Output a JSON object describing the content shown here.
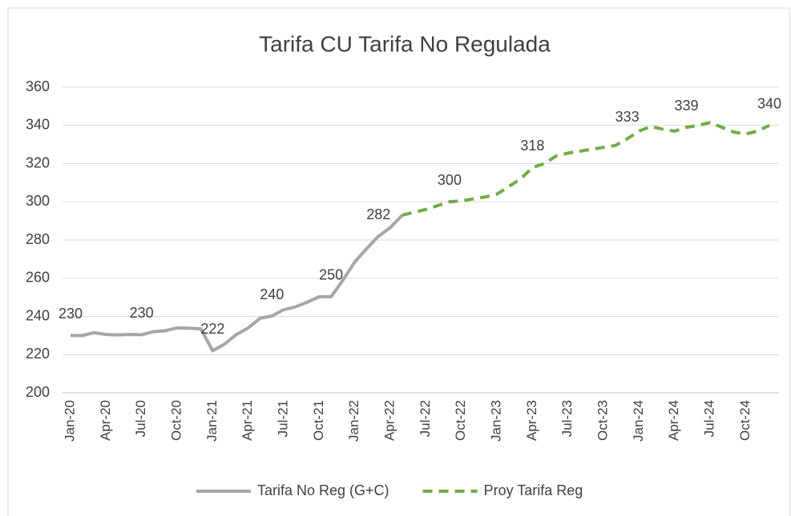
{
  "chart_data": {
    "type": "line",
    "title": "Tarifa CU Tarifa No Regulada",
    "categories": [
      "Jan-20",
      null,
      null,
      "Apr-20",
      null,
      null,
      "Jul-20",
      null,
      null,
      "Oct-20",
      null,
      null,
      "Jan-21",
      null,
      null,
      "Apr-21",
      null,
      null,
      "Jul-21",
      null,
      null,
      "Oct-21",
      null,
      null,
      "Jan-22",
      null,
      null,
      "Apr-22",
      null,
      null,
      "Jul-22",
      null,
      null,
      "Oct-22",
      null,
      null,
      "Jan-23",
      null,
      null,
      "Apr-23",
      null,
      null,
      "Jul-23",
      null,
      null,
      "Oct-23",
      null,
      null,
      "Jan-24",
      null,
      null,
      "Apr-24",
      null,
      null,
      "Jul-24",
      null,
      null,
      "Oct-24",
      null,
      null
    ],
    "series": [
      {
        "name": "Tarifa No Reg (G+C)",
        "color": "#a6a6a6",
        "dash": false,
        "values": [
          230,
          230,
          231.5,
          230.5,
          230.3,
          230.5,
          230.4,
          232,
          232.5,
          234,
          233.8,
          233.5,
          222,
          225.5,
          230.5,
          234,
          239,
          240.2,
          243.5,
          245,
          247.5,
          250.3,
          250.3,
          259,
          268.5,
          275.5,
          282,
          286.5,
          293,
          null,
          null,
          null,
          null,
          null,
          null,
          null,
          null,
          null,
          null,
          null,
          null,
          null,
          null,
          null,
          null,
          null,
          null,
          null,
          null,
          null,
          null,
          null,
          null,
          null,
          null,
          null,
          null,
          null,
          null,
          null
        ],
        "value_labels": [
          "230",
          null,
          null,
          null,
          null,
          null,
          "230",
          null,
          null,
          null,
          null,
          null,
          "222",
          null,
          null,
          null,
          null,
          "240",
          null,
          null,
          null,
          null,
          "250",
          null,
          null,
          null,
          "282",
          null,
          null,
          null,
          null,
          null,
          null,
          null,
          null,
          null,
          null,
          null,
          null,
          null,
          null,
          null,
          null,
          null,
          null,
          null,
          null,
          null,
          null,
          null,
          null,
          null,
          null,
          null,
          null,
          null,
          null,
          null,
          null,
          null
        ]
      },
      {
        "name": "Proy Tarifa Reg",
        "color": "#70ad47",
        "dash": true,
        "values": [
          null,
          null,
          null,
          null,
          null,
          null,
          null,
          null,
          null,
          null,
          null,
          null,
          null,
          null,
          null,
          null,
          null,
          null,
          null,
          null,
          null,
          null,
          null,
          null,
          null,
          null,
          null,
          null,
          293,
          294.5,
          296,
          298,
          300,
          300.5,
          301.5,
          302.5,
          304,
          308,
          312,
          318,
          320,
          324,
          325.5,
          326.5,
          327.5,
          328.5,
          329.5,
          333,
          337,
          339.5,
          338,
          337,
          339,
          340,
          341.5,
          339,
          336.5,
          335.5,
          337,
          340
        ],
        "value_labels": [
          null,
          null,
          null,
          null,
          null,
          null,
          null,
          null,
          null,
          null,
          null,
          null,
          null,
          null,
          null,
          null,
          null,
          null,
          null,
          null,
          null,
          null,
          null,
          null,
          null,
          null,
          null,
          null,
          null,
          null,
          null,
          null,
          "300",
          null,
          null,
          null,
          null,
          null,
          null,
          "318",
          null,
          null,
          null,
          null,
          null,
          null,
          null,
          "333",
          null,
          null,
          null,
          null,
          "339",
          null,
          null,
          null,
          null,
          null,
          null,
          "340"
        ]
      }
    ],
    "ylim": [
      200,
      360
    ],
    "yticks": [
      200,
      220,
      240,
      260,
      280,
      300,
      320,
      340,
      360
    ],
    "grid": true,
    "legend": "bottom"
  }
}
